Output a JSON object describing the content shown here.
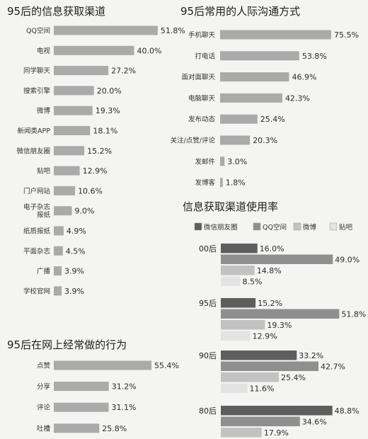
{
  "chart_data": [
    {
      "type": "bar",
      "orientation": "horizontal",
      "title": "95后的信息获取渠道",
      "categories": [
        "QQ空间",
        "电视",
        "同学聊天",
        "搜索引擎",
        "微博",
        "新闻类APP",
        "微信朋友圈",
        "贴吧",
        "门户网站",
        "电子杂志报纸",
        "纸质报纸",
        "平面杂志",
        "广播",
        "学校官网"
      ],
      "category_labels": [
        [
          "QQ空间"
        ],
        [
          "电视"
        ],
        [
          "同学聊天"
        ],
        [
          "搜索引擎"
        ],
        [
          "微博"
        ],
        [
          "新闻类APP"
        ],
        [
          "微信朋友圈"
        ],
        [
          "贴吧"
        ],
        [
          "门户网站"
        ],
        [
          "电子杂志",
          "报纸"
        ],
        [
          "纸质报纸"
        ],
        [
          "平面杂志"
        ],
        [
          "广播"
        ],
        [
          "学校官网"
        ]
      ],
      "values": [
        51.8,
        40.0,
        27.2,
        20.0,
        19.3,
        18.1,
        15.2,
        12.9,
        10.6,
        9.0,
        4.9,
        4.5,
        3.9,
        3.9
      ],
      "value_labels": [
        "51.8%",
        "40.0%",
        "27.2%",
        "20.0%",
        "19.3%",
        "18.1%",
        "15.2%",
        "12.9%",
        "10.6%",
        "9.0%",
        "4.9%",
        "4.5%",
        "3.9%",
        "3.9%"
      ],
      "unit": "%",
      "xlim": [
        0,
        55
      ],
      "color": "#aaaaaa"
    },
    {
      "type": "bar",
      "orientation": "horizontal",
      "title": "95后常用的人际沟通方式",
      "categories": [
        "手机聊天",
        "打电话",
        "面对面聊天",
        "电脑聊天",
        "发布动态",
        "关注/点赞/评论",
        "发邮件",
        "发博客"
      ],
      "category_labels": [
        [
          "手机聊天"
        ],
        [
          "打电话"
        ],
        [
          "面对面聊天"
        ],
        [
          "电脑聊天"
        ],
        [
          "发布动态"
        ],
        [
          "关注/点赞/评论"
        ],
        [
          "发邮件"
        ],
        [
          "发博客"
        ]
      ],
      "values": [
        75.5,
        53.8,
        46.9,
        42.3,
        25.4,
        20.3,
        3.0,
        1.8
      ],
      "value_labels": [
        "75.5%",
        "53.8%",
        "46.9%",
        "42.3%",
        "25.4%",
        "20.3%",
        "3.0%",
        "1.8%"
      ],
      "unit": "%",
      "xlim": [
        0,
        76
      ],
      "color": "#aaaaaa"
    },
    {
      "type": "bar",
      "orientation": "horizontal",
      "title": "95后在网上经常做的行为",
      "categories": [
        "点赞",
        "分享",
        "评论",
        "吐槽"
      ],
      "category_labels": [
        [
          "点赞"
        ],
        [
          "分享"
        ],
        [
          "评论"
        ],
        [
          "吐槽"
        ]
      ],
      "values": [
        55.4,
        31.2,
        31.1,
        25.8
      ],
      "value_labels": [
        "55.4%",
        "31.2%",
        "31.1%",
        "25.8%"
      ],
      "unit": "%",
      "xlim": [
        0,
        57
      ],
      "color": "#aaaaaa"
    },
    {
      "type": "bar",
      "orientation": "horizontal",
      "grouped": true,
      "title": "信息获取渠道使用率",
      "legend_position": "top",
      "categories": [
        "00后",
        "95后",
        "90后",
        "80后"
      ],
      "series": [
        {
          "name": "微信朋友圈",
          "color": "#5e5e5e",
          "values": [
            16.0,
            15.2,
            33.2,
            48.8
          ],
          "value_labels": [
            "16.0%",
            "15.2%",
            "33.2%",
            "48.8%"
          ]
        },
        {
          "name": "QQ空间",
          "color": "#8f8f8f",
          "values": [
            49.0,
            51.8,
            42.7,
            34.6
          ],
          "value_labels": [
            "49.0%",
            "51.8%",
            "42.7%",
            "34.6%"
          ]
        },
        {
          "name": "微博",
          "color": "#c2c2c2",
          "values": [
            14.8,
            19.3,
            25.4,
            17.9
          ],
          "value_labels": [
            "14.8%",
            "19.3%",
            "25.4%",
            "17.9%"
          ]
        },
        {
          "name": "贴吧",
          "color": "#e3e3e3",
          "values": [
            8.5,
            12.9,
            11.6,
            null
          ],
          "value_labels": [
            "8.5%",
            "12.9%",
            "11.6%",
            ""
          ]
        }
      ],
      "unit": "%",
      "xlim": [
        0,
        52
      ]
    }
  ]
}
